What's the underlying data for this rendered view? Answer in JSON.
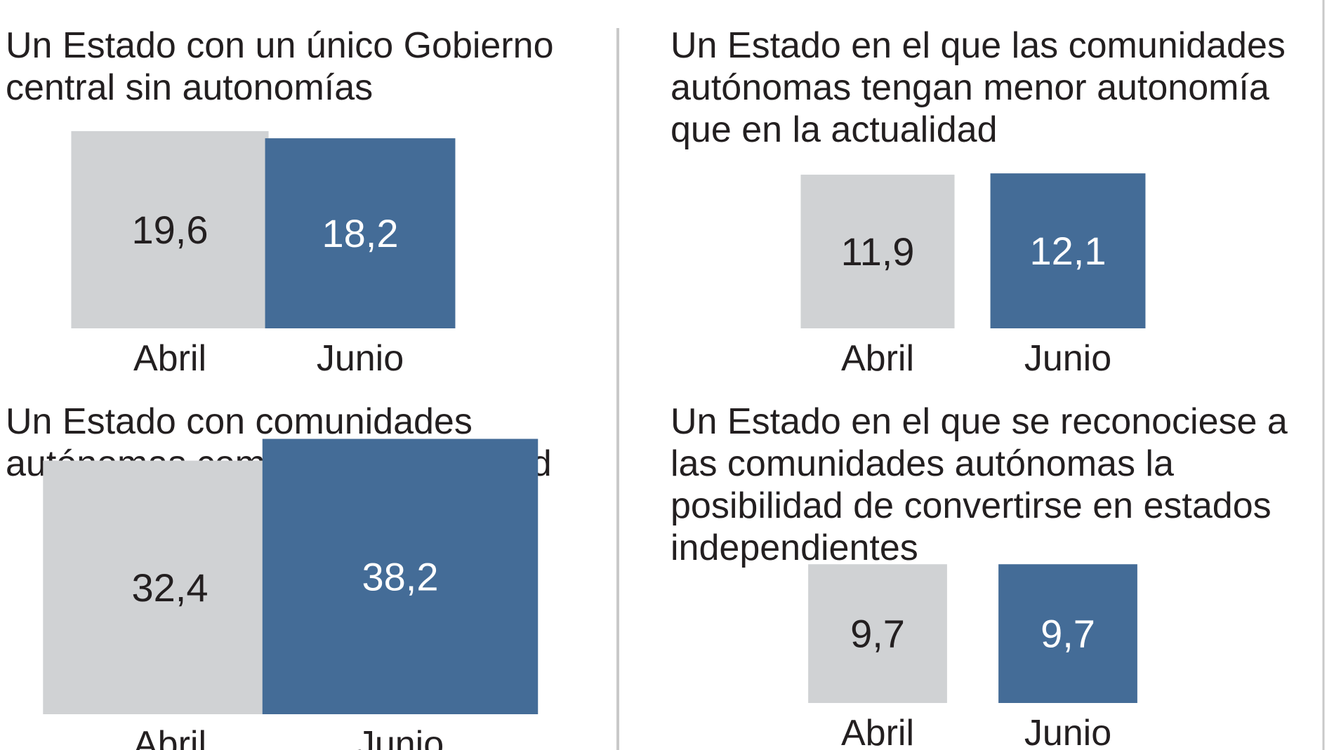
{
  "colors": {
    "abril": "#d0d2d4",
    "junio": "#446c97",
    "divider": "#c9c9c9",
    "text_dark": "#231f20",
    "text_light": "#ffffff"
  },
  "chart_data": [
    {
      "type": "bar",
      "title": "Un Estado con un único Gobierno central sin autonomías",
      "title_lines": [
        "Un Estado con un único Gobierno",
        "central sin autonomías"
      ],
      "categories": [
        "Abril",
        "Junio"
      ],
      "values": [
        19.6,
        18.2
      ],
      "value_labels": [
        "19,6",
        "18,2"
      ]
    },
    {
      "type": "bar",
      "title": "Un Estado en el que las comunidades autónomas tengan menor autonomía que en la actualidad",
      "title_lines": [
        "Un Estado en el que las comunidades",
        "autónomas tengan menor autonomía",
        "que en la actualidad"
      ],
      "categories": [
        "Abril",
        "Junio"
      ],
      "values": [
        11.9,
        12.1
      ],
      "value_labels": [
        "11,9",
        "12,1"
      ]
    },
    {
      "type": "bar",
      "title": "Un Estado con comunidades autónomas como en la actualidad",
      "title_lines": [
        "Un Estado con comunidades",
        "autónomas como en la actualidad"
      ],
      "categories": [
        "Abril",
        "Junio"
      ],
      "values": [
        32.4,
        38.2
      ],
      "value_labels": [
        "32,4",
        "38,2"
      ]
    },
    {
      "type": "bar",
      "title": "Un Estado en el que se reconociese a las comunidades autónomas la posibilidad de convertirse en estados independientes",
      "title_lines": [
        "Un Estado en el que se reconociese a",
        "las comunidades autónomas la",
        "posibilidad de convertirse en estados",
        "independientes"
      ],
      "categories": [
        "Abril",
        "Junio"
      ],
      "values": [
        9.7,
        9.7
      ],
      "value_labels": [
        "9,7",
        "9,7"
      ]
    }
  ]
}
